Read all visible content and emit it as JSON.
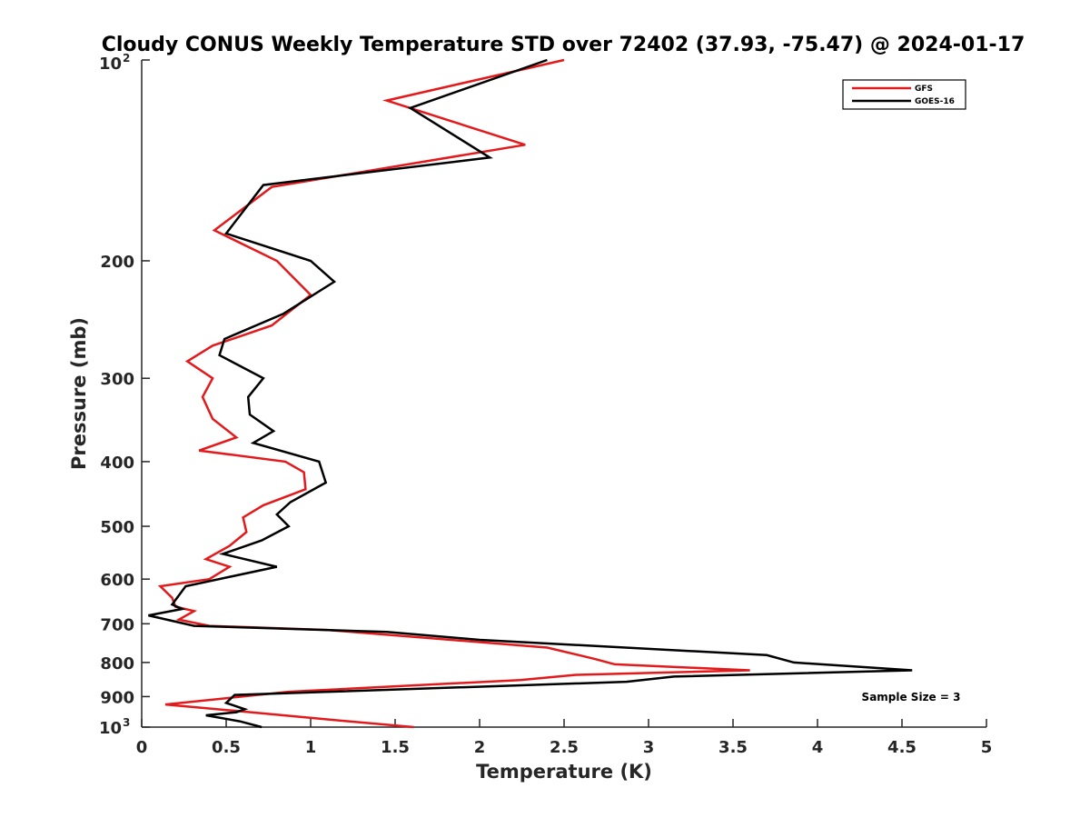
{
  "chart_data": {
    "type": "line",
    "title": "Cloudy CONUS Weekly Temperature STD over 72402 (37.93, -75.47) @ 2024-01-17",
    "xlabel": "Temperature (K)",
    "ylabel": "Pressure (mb)",
    "xlim": [
      0,
      5
    ],
    "ylim": [
      100,
      1000
    ],
    "y_scale": "log",
    "y_reversed": true,
    "grid": false,
    "legend_position": "top-right",
    "x_ticks": [
      "0",
      "0.5",
      "1",
      "1.5",
      "2",
      "2.5",
      "3",
      "3.5",
      "4",
      "4.5",
      "5"
    ],
    "y_ticks": [
      {
        "value": 100,
        "label": "10",
        "sup": "2"
      },
      {
        "value": 200,
        "label": "200",
        "sup": ""
      },
      {
        "value": 300,
        "label": "300",
        "sup": ""
      },
      {
        "value": 400,
        "label": "400",
        "sup": ""
      },
      {
        "value": 500,
        "label": "500",
        "sup": ""
      },
      {
        "value": 600,
        "label": "600",
        "sup": ""
      },
      {
        "value": 700,
        "label": "700",
        "sup": ""
      },
      {
        "value": 800,
        "label": "800",
        "sup": ""
      },
      {
        "value": 900,
        "label": "900",
        "sup": ""
      },
      {
        "value": 1000,
        "label": "10",
        "sup": "3"
      }
    ],
    "annotation": "Sample Size = 3",
    "series": [
      {
        "name": "GFS",
        "color": "#e31a1c",
        "points": [
          [
            2.5,
            100
          ],
          [
            1.45,
            115
          ],
          [
            2.27,
            134
          ],
          [
            0.77,
            155
          ],
          [
            0.43,
            180
          ],
          [
            0.8,
            200
          ],
          [
            1.0,
            225
          ],
          [
            0.77,
            250
          ],
          [
            0.42,
            268
          ],
          [
            0.27,
            283
          ],
          [
            0.42,
            300
          ],
          [
            0.36,
            320
          ],
          [
            0.42,
            345
          ],
          [
            0.56,
            368
          ],
          [
            0.34,
            385
          ],
          [
            0.85,
            400
          ],
          [
            0.96,
            415
          ],
          [
            0.97,
            440
          ],
          [
            0.72,
            465
          ],
          [
            0.6,
            485
          ],
          [
            0.62,
            510
          ],
          [
            0.52,
            535
          ],
          [
            0.38,
            560
          ],
          [
            0.52,
            575
          ],
          [
            0.4,
            600
          ],
          [
            0.11,
            615
          ],
          [
            0.18,
            640
          ],
          [
            0.2,
            660
          ],
          [
            0.31,
            670
          ],
          [
            0.22,
            690
          ],
          [
            0.4,
            705
          ],
          [
            1.1,
            715
          ],
          [
            2.4,
            760
          ],
          [
            2.68,
            790
          ],
          [
            2.8,
            805
          ],
          [
            3.6,
            822
          ],
          [
            2.57,
            835
          ],
          [
            2.24,
            850
          ],
          [
            0.87,
            885
          ],
          [
            0.14,
            925
          ],
          [
            0.55,
            945
          ],
          [
            1.12,
            975
          ],
          [
            1.61,
            1000
          ]
        ]
      },
      {
        "name": "GOES-16",
        "color": "#000000",
        "points": [
          [
            2.4,
            100
          ],
          [
            1.59,
            118
          ],
          [
            2.06,
            140
          ],
          [
            0.72,
            154
          ],
          [
            0.5,
            182
          ],
          [
            1.0,
            200
          ],
          [
            1.14,
            215
          ],
          [
            0.84,
            240
          ],
          [
            0.49,
            262
          ],
          [
            0.46,
            277
          ],
          [
            0.72,
            300
          ],
          [
            0.63,
            320
          ],
          [
            0.64,
            340
          ],
          [
            0.78,
            360
          ],
          [
            0.66,
            375
          ],
          [
            1.05,
            400
          ],
          [
            1.09,
            430
          ],
          [
            0.88,
            460
          ],
          [
            0.8,
            480
          ],
          [
            0.87,
            500
          ],
          [
            0.71,
            525
          ],
          [
            0.48,
            550
          ],
          [
            0.8,
            575
          ],
          [
            0.26,
            615
          ],
          [
            0.18,
            655
          ],
          [
            0.24,
            665
          ],
          [
            0.04,
            680
          ],
          [
            0.31,
            705
          ],
          [
            1.45,
            720
          ],
          [
            2.0,
            740
          ],
          [
            3.7,
            780
          ],
          [
            3.86,
            800
          ],
          [
            4.56,
            822
          ],
          [
            3.15,
            840
          ],
          [
            2.87,
            855
          ],
          [
            0.55,
            895
          ],
          [
            0.5,
            920
          ],
          [
            0.61,
            940
          ],
          [
            0.56,
            950
          ],
          [
            0.38,
            960
          ],
          [
            0.58,
            980
          ],
          [
            0.71,
            1000
          ]
        ]
      }
    ]
  }
}
